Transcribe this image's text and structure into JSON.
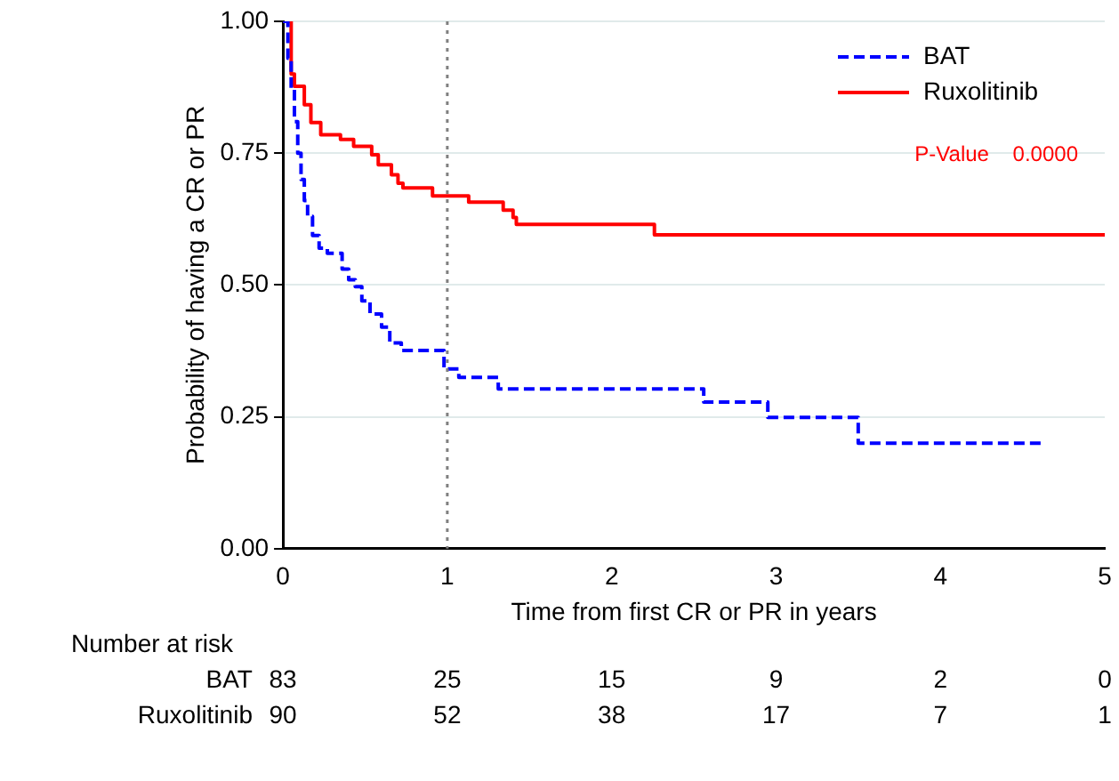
{
  "chart_data": {
    "type": "step",
    "xlabel": "Time from first CR or PR in years",
    "ylabel": "Probability of having a CR or PR",
    "xlim": [
      0,
      5
    ],
    "xticks": [
      0,
      1,
      2,
      3,
      4,
      5
    ],
    "ylim": [
      0,
      1
    ],
    "yticks": [
      {
        "value": 0,
        "label": "0.00"
      },
      {
        "value": 0.25,
        "label": "0.25"
      },
      {
        "value": 0.5,
        "label": "0.50"
      },
      {
        "value": 0.75,
        "label": "0.75"
      },
      {
        "value": 1,
        "label": "1.00"
      }
    ],
    "grid": "y",
    "legend": "top right",
    "marker": "none",
    "ref_lines": [
      {
        "axis": "x",
        "value": 1,
        "color": "#808080",
        "line_style": "dotted"
      }
    ],
    "series": [
      {
        "name": "BAT",
        "color": "#0000ff",
        "line_style": "dashed",
        "x": [
          0,
          0.03,
          0.05,
          0.07,
          0.09,
          0.11,
          0.13,
          0.15,
          0.18,
          0.22,
          0.27,
          0.36,
          0.4,
          0.44,
          0.48,
          0.53,
          0.6,
          0.65,
          0.72,
          0.8,
          0.98,
          1.0,
          1.07,
          1.31,
          2.56,
          2.95,
          3.5,
          4.61
        ],
        "values": [
          1,
          0.93,
          0.87,
          0.81,
          0.75,
          0.7,
          0.66,
          0.63,
          0.594,
          0.57,
          0.56,
          0.53,
          0.51,
          0.497,
          0.47,
          0.445,
          0.42,
          0.39,
          0.376,
          0.376,
          0.341,
          0.341,
          0.325,
          0.303,
          0.278,
          0.249,
          0.2,
          0.2
        ]
      },
      {
        "name": "Ruxolitinib",
        "color": "#ff0000",
        "line_style": "solid",
        "x": [
          0,
          0.05,
          0.07,
          0.13,
          0.17,
          0.23,
          0.35,
          0.43,
          0.54,
          0.58,
          0.66,
          0.7,
          0.73,
          0.91,
          1.13,
          1.34,
          1.4,
          1.42,
          2.26,
          5
        ],
        "values": [
          1,
          0.9,
          0.877,
          0.842,
          0.808,
          0.785,
          0.776,
          0.763,
          0.747,
          0.728,
          0.709,
          0.693,
          0.684,
          0.669,
          0.657,
          0.642,
          0.628,
          0.615,
          0.595,
          0.595
        ]
      }
    ],
    "annotations": [
      "P-Value    0.0000",
      "Number at risk",
      "BAT",
      "83",
      "25",
      "15",
      "9",
      "2",
      "0",
      "Ruxolitinib",
      "90",
      "52",
      "38",
      "17",
      "7",
      "1"
    ]
  }
}
